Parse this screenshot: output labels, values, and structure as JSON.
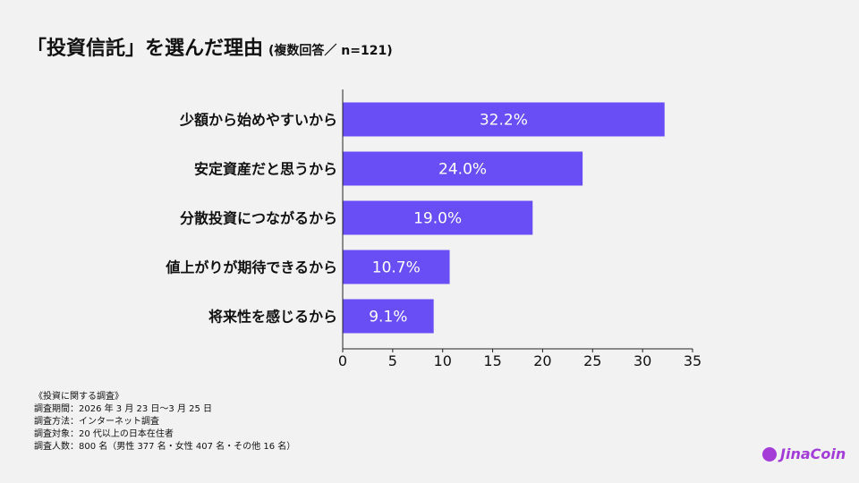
{
  "title": "「投資信託」を選んだ理由",
  "subtitle": "(複数回答／ n=121)",
  "chart_data": {
    "type": "bar",
    "orientation": "horizontal",
    "categories": [
      "少額から始めやすいから",
      "安定資産だと思うから",
      "分散投資につながるから",
      "値上がりが期待できるから",
      "将来性を感じるから"
    ],
    "values": [
      32.2,
      24.0,
      19.0,
      10.7,
      9.1
    ],
    "data_labels": [
      "32.2%",
      "24.0%",
      "19.0%",
      "10.7%",
      "9.1%"
    ],
    "xlim": [
      0,
      35
    ],
    "xticks": [
      "0",
      "5",
      "10",
      "15",
      "20",
      "25",
      "30",
      "35"
    ],
    "grid": false,
    "bar_color": "#6a4ef5"
  },
  "notes": {
    "heading": "《投資に関する調査》",
    "lines": [
      "調査期間：2026 年 3 月 23 日〜3 月 25 日",
      "調査方法：インターネット調査",
      "調査対象：20 代以上の日本在住者",
      "調査人数：800 名（男性 377 名・女性 407 名・その他 16 名）"
    ]
  },
  "logo": "JinaCoin"
}
